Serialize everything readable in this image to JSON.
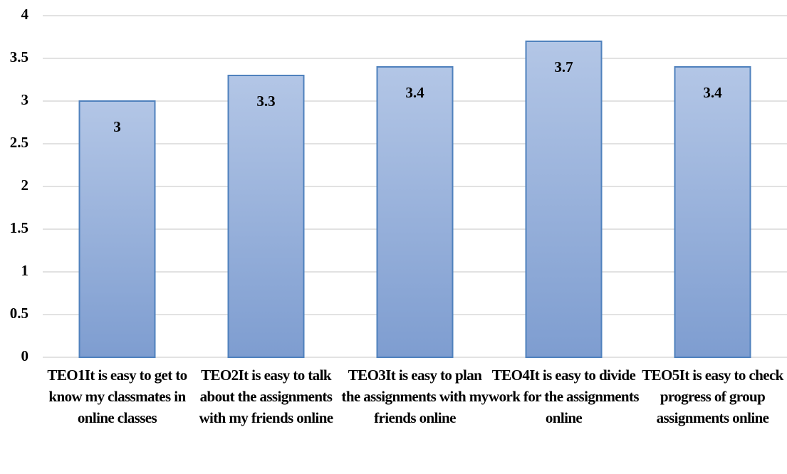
{
  "chart_data": {
    "type": "bar",
    "categories": [
      "TEO1It is easy to get to know my classmates in online classes",
      "TEO2It is easy to talk about the assignments with my friends online",
      "TEO3It is easy to plan the assignments with my friends online",
      "TEO4It is easy to divide work for the assignments online",
      "TEO5It is easy to check progress of group assignments online"
    ],
    "values": [
      3,
      3.3,
      3.4,
      3.7,
      3.4
    ],
    "color": "#95b0da",
    "ylim": [
      0,
      4
    ],
    "yticks": [
      0,
      0.5,
      1,
      1.5,
      2,
      2.5,
      3,
      3.5,
      4
    ],
    "grid": true
  }
}
